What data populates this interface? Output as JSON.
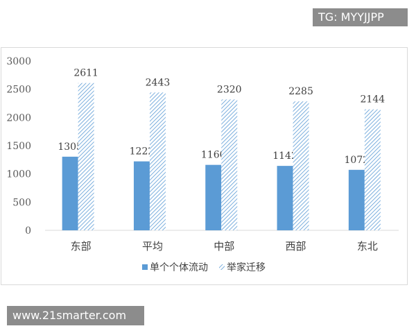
{
  "watermarks": {
    "top": "TG: MYYJJPP",
    "bottom": "www.21smarter.com"
  },
  "chart_data": {
    "type": "bar",
    "categories": [
      "东部",
      "平均",
      "中部",
      "西部",
      "东北"
    ],
    "series": [
      {
        "name": "单个个体流动",
        "values": [
          1305,
          1222,
          1160,
          1142,
          1072
        ],
        "color": "#5b9bd5",
        "fill": "solid"
      },
      {
        "name": "举家迁移",
        "values": [
          2611,
          2443,
          2320,
          2285,
          2144
        ],
        "color": "#5b9bd5",
        "fill": "hatched"
      }
    ],
    "yticks": [
      0,
      500,
      1000,
      1500,
      2000,
      2500,
      3000
    ],
    "ylim": [
      0,
      3000
    ],
    "grid": false,
    "legend": "bottom",
    "data_labels": true
  }
}
